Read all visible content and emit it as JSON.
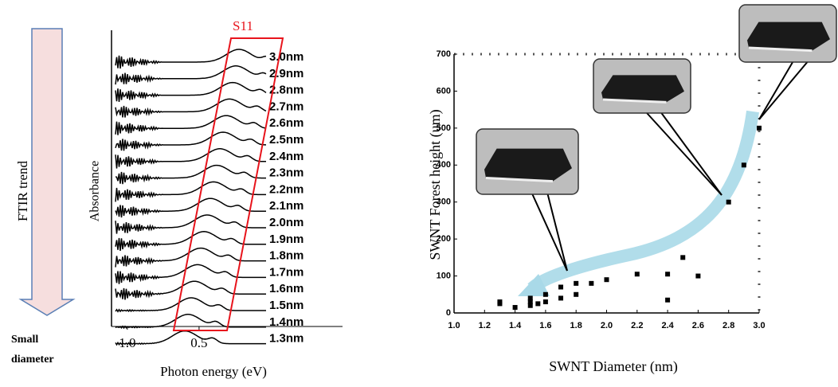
{
  "chart_data": [
    {
      "type": "spectra",
      "annotations": {
        "trend": "FTIR trend",
        "small_1": "Small",
        "small_2": "diameter",
        "band": "S11"
      },
      "y_label": "Absorbance",
      "x_label": "Photon energy (eV)",
      "xlim": [
        1.11,
        0.0
      ],
      "xticks": [
        {
          "value": 1,
          "label": "1.0"
        },
        0.5
      ],
      "curve_labels": [
        "3.0nm",
        "2.9nm",
        "2.8nm",
        "2.7nm",
        "2.6nm",
        "2.5nm",
        "2.4nm",
        "2.3nm",
        "2.2nm",
        "2.1nm",
        "2.0nm",
        "1.9nm",
        "1.8nm",
        "1.7nm",
        "1.6nm",
        "1.5nm",
        "1.4nm",
        "1.3nm"
      ],
      "band_color": "#e8141c"
    },
    {
      "type": "scatter",
      "x_label": "SWNT Diameter (nm)",
      "y_label": "SWNT Forest height (um)",
      "xlim": [
        1.0,
        3.0
      ],
      "ylim": [
        0,
        700
      ],
      "xticks": [
        {
          "value": 1,
          "label": "1.0"
        },
        1.2,
        1.4,
        1.6,
        1.8,
        {
          "value": 2,
          "label": "2.0"
        },
        2.2,
        2.4,
        2.6,
        2.8,
        {
          "value": 3,
          "label": "3.0"
        }
      ],
      "yticks": [
        0,
        100,
        200,
        300,
        400,
        500,
        600,
        700
      ],
      "color": "#000000",
      "x": [
        1.3,
        1.3,
        1.4,
        1.5,
        1.5,
        1.5,
        1.55,
        1.6,
        1.6,
        1.7,
        1.7,
        1.8,
        1.8,
        1.9,
        2.0,
        2.2,
        2.4,
        2.4,
        2.5,
        2.6,
        2.8,
        2.9,
        3.0
      ],
      "values": [
        25,
        30,
        15,
        20,
        30,
        40,
        25,
        30,
        50,
        40,
        70,
        50,
        80,
        80,
        90,
        105,
        105,
        35,
        150,
        100,
        300,
        400,
        500
      ]
    }
  ]
}
